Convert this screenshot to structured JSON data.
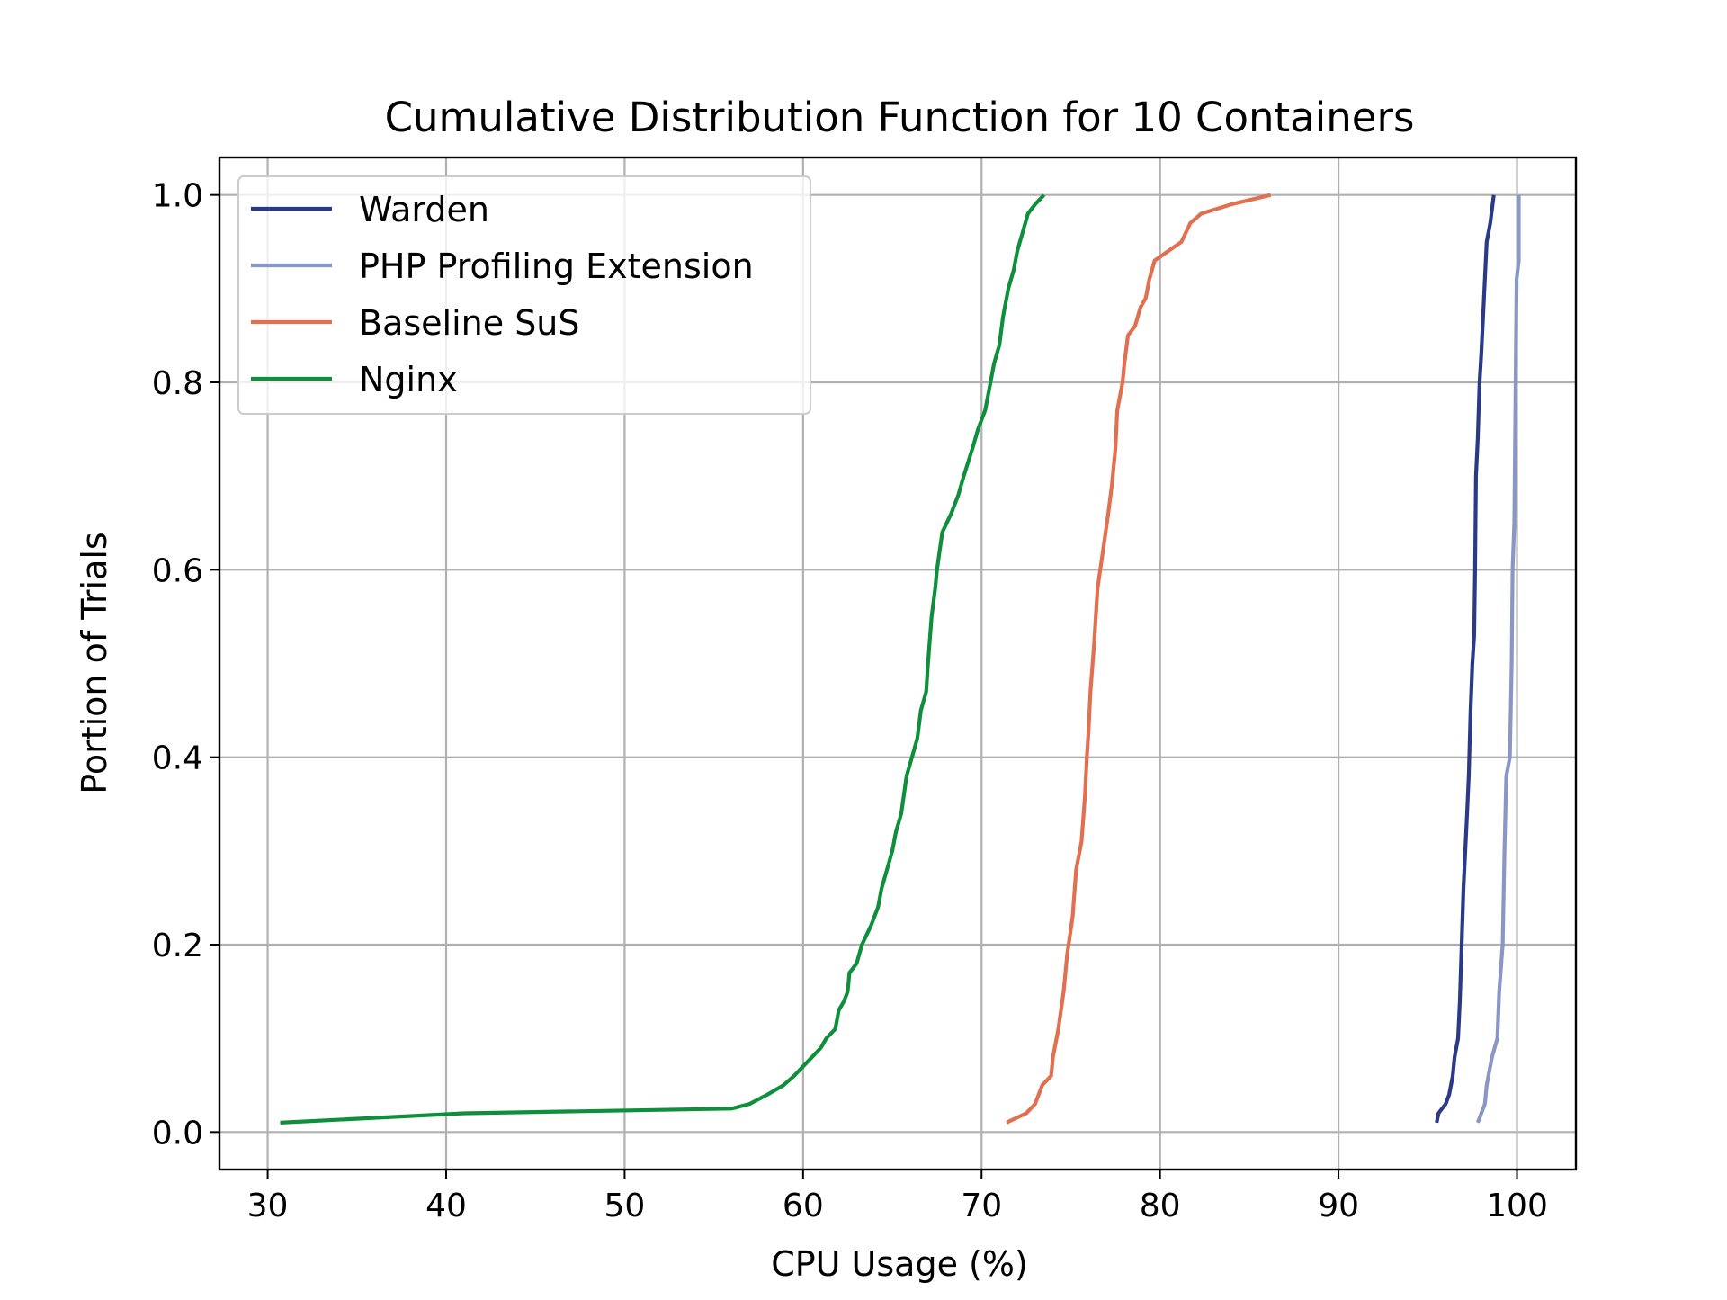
{
  "chart_data": {
    "type": "line",
    "title": "Cumulative Distribution Function for 10 Containers",
    "xlabel": "CPU Usage (%)",
    "ylabel": "Portion of Trials",
    "xlim": [
      27.3,
      103.3
    ],
    "ylim": [
      -0.04,
      1.04
    ],
    "xticks": [
      30,
      40,
      50,
      60,
      70,
      80,
      90,
      100
    ],
    "yticks": [
      0.0,
      0.2,
      0.4,
      0.6,
      0.8,
      1.0
    ],
    "xtick_labels": [
      "30",
      "40",
      "50",
      "60",
      "70",
      "80",
      "90",
      "100"
    ],
    "ytick_labels": [
      "0.0",
      "0.2",
      "0.4",
      "0.6",
      "0.8",
      "1.0"
    ],
    "grid": true,
    "legend_position": "top-left",
    "series": [
      {
        "name": "Warden",
        "color": "#2b3a87",
        "points": [
          [
            95.5,
            0.01
          ],
          [
            95.6,
            0.02
          ],
          [
            96.0,
            0.03
          ],
          [
            96.2,
            0.04
          ],
          [
            96.4,
            0.06
          ],
          [
            96.5,
            0.08
          ],
          [
            96.7,
            0.1
          ],
          [
            96.8,
            0.14
          ],
          [
            96.9,
            0.2
          ],
          [
            97.0,
            0.26
          ],
          [
            97.1,
            0.3
          ],
          [
            97.2,
            0.34
          ],
          [
            97.3,
            0.38
          ],
          [
            97.4,
            0.45
          ],
          [
            97.5,
            0.5
          ],
          [
            97.6,
            0.53
          ],
          [
            97.65,
            0.6
          ],
          [
            97.7,
            0.7
          ],
          [
            97.8,
            0.74
          ],
          [
            97.9,
            0.8
          ],
          [
            98.0,
            0.83
          ],
          [
            98.1,
            0.87
          ],
          [
            98.2,
            0.91
          ],
          [
            98.3,
            0.95
          ],
          [
            98.5,
            0.97
          ],
          [
            98.7,
            1.0
          ]
        ]
      },
      {
        "name": "PHP Profiling Extension",
        "color": "#8a96c4",
        "points": [
          [
            97.8,
            0.01
          ],
          [
            98.2,
            0.03
          ],
          [
            98.3,
            0.05
          ],
          [
            98.6,
            0.08
          ],
          [
            98.9,
            0.1
          ],
          [
            99.0,
            0.15
          ],
          [
            99.2,
            0.2
          ],
          [
            99.3,
            0.3
          ],
          [
            99.4,
            0.38
          ],
          [
            99.6,
            0.4
          ],
          [
            99.7,
            0.5
          ],
          [
            99.75,
            0.6
          ],
          [
            99.85,
            0.65
          ],
          [
            99.9,
            0.75
          ],
          [
            99.95,
            0.85
          ],
          [
            99.98,
            0.91
          ],
          [
            100.1,
            0.93
          ],
          [
            100.1,
            1.0
          ]
        ]
      },
      {
        "name": "Baseline SuS",
        "color": "#e07050",
        "points": [
          [
            71.4,
            0.01
          ],
          [
            72.5,
            0.02
          ],
          [
            73.0,
            0.03
          ],
          [
            73.4,
            0.05
          ],
          [
            73.9,
            0.06
          ],
          [
            74.0,
            0.08
          ],
          [
            74.3,
            0.11
          ],
          [
            74.6,
            0.15
          ],
          [
            74.8,
            0.19
          ],
          [
            75.1,
            0.23
          ],
          [
            75.3,
            0.28
          ],
          [
            75.6,
            0.31
          ],
          [
            75.8,
            0.36
          ],
          [
            75.9,
            0.4
          ],
          [
            76.0,
            0.43
          ],
          [
            76.1,
            0.47
          ],
          [
            76.3,
            0.52
          ],
          [
            76.5,
            0.58
          ],
          [
            76.8,
            0.62
          ],
          [
            77.1,
            0.66
          ],
          [
            77.3,
            0.69
          ],
          [
            77.5,
            0.73
          ],
          [
            77.6,
            0.77
          ],
          [
            77.9,
            0.8
          ],
          [
            78.0,
            0.82
          ],
          [
            78.2,
            0.85
          ],
          [
            78.6,
            0.86
          ],
          [
            78.9,
            0.88
          ],
          [
            79.2,
            0.89
          ],
          [
            79.4,
            0.91
          ],
          [
            79.7,
            0.93
          ],
          [
            81.2,
            0.95
          ],
          [
            81.7,
            0.97
          ],
          [
            82.3,
            0.98
          ],
          [
            84.0,
            0.99
          ],
          [
            86.2,
            1.0
          ]
        ]
      },
      {
        "name": "Nginx",
        "color": "#0f8f3c",
        "points": [
          [
            30.7,
            0.01
          ],
          [
            41.0,
            0.02
          ],
          [
            56.0,
            0.025
          ],
          [
            57.0,
            0.03
          ],
          [
            58.0,
            0.04
          ],
          [
            58.9,
            0.05
          ],
          [
            59.5,
            0.06
          ],
          [
            60.0,
            0.07
          ],
          [
            60.5,
            0.08
          ],
          [
            61.0,
            0.09
          ],
          [
            61.3,
            0.1
          ],
          [
            61.8,
            0.11
          ],
          [
            62.0,
            0.13
          ],
          [
            62.3,
            0.14
          ],
          [
            62.5,
            0.15
          ],
          [
            62.6,
            0.17
          ],
          [
            63.0,
            0.18
          ],
          [
            63.3,
            0.2
          ],
          [
            63.8,
            0.22
          ],
          [
            64.2,
            0.24
          ],
          [
            64.4,
            0.26
          ],
          [
            64.7,
            0.28
          ],
          [
            65.0,
            0.3
          ],
          [
            65.2,
            0.32
          ],
          [
            65.5,
            0.34
          ],
          [
            65.8,
            0.38
          ],
          [
            66.1,
            0.4
          ],
          [
            66.4,
            0.42
          ],
          [
            66.6,
            0.45
          ],
          [
            66.9,
            0.47
          ],
          [
            67.0,
            0.5
          ],
          [
            67.2,
            0.55
          ],
          [
            67.4,
            0.58
          ],
          [
            67.5,
            0.6
          ],
          [
            67.8,
            0.64
          ],
          [
            68.3,
            0.66
          ],
          [
            68.7,
            0.68
          ],
          [
            69.0,
            0.7
          ],
          [
            69.5,
            0.73
          ],
          [
            69.8,
            0.75
          ],
          [
            70.2,
            0.77
          ],
          [
            70.5,
            0.8
          ],
          [
            70.7,
            0.82
          ],
          [
            71.0,
            0.84
          ],
          [
            71.2,
            0.87
          ],
          [
            71.5,
            0.9
          ],
          [
            71.8,
            0.92
          ],
          [
            72.0,
            0.94
          ],
          [
            72.3,
            0.96
          ],
          [
            72.6,
            0.98
          ],
          [
            73.0,
            0.99
          ],
          [
            73.5,
            1.0
          ]
        ]
      }
    ]
  }
}
